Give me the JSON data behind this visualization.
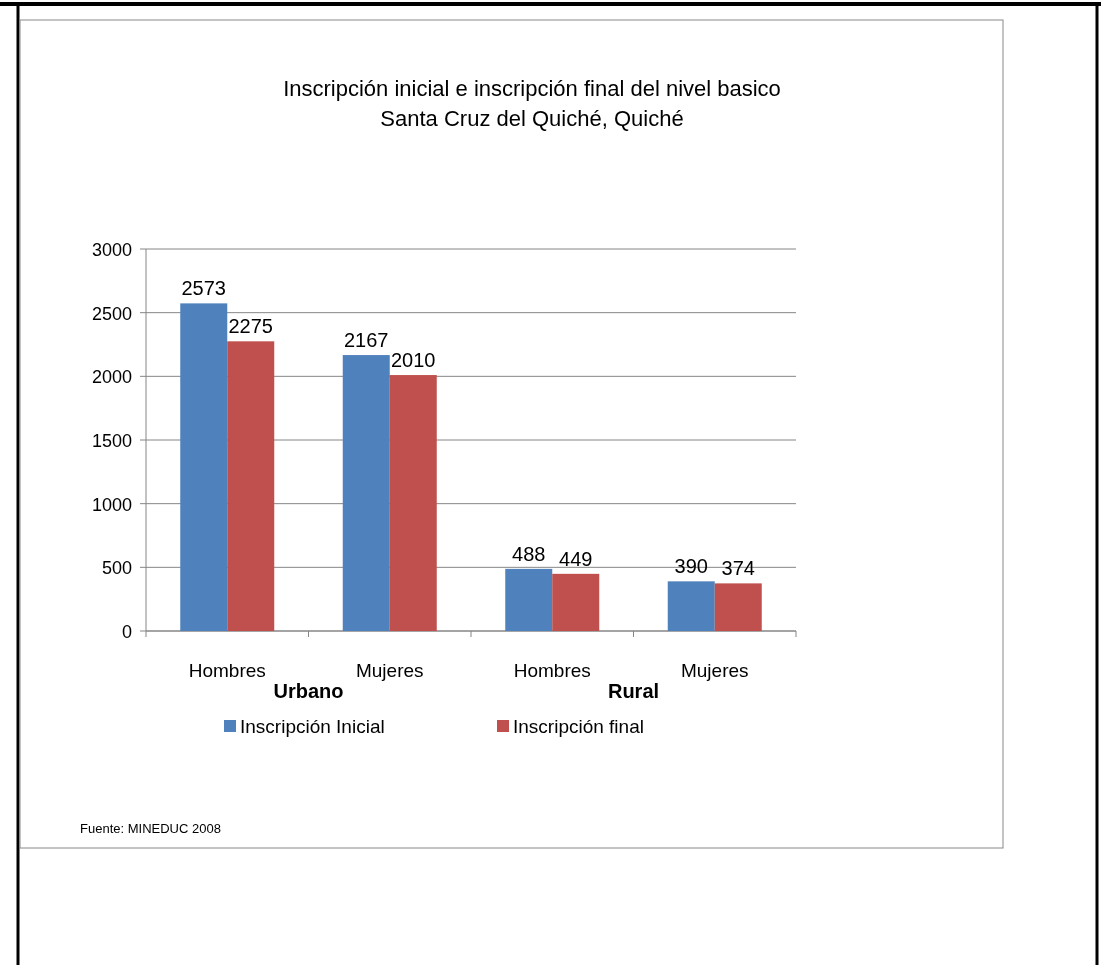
{
  "chart_data": {
    "type": "bar",
    "title": "Inscripción inicial e inscripción final del nivel basico\nSanta Cruz del Quiché, Quiché",
    "categories": [
      "Hombres",
      "Mujeres",
      "Hombres",
      "Mujeres"
    ],
    "series": [
      {
        "name": "Inscripción Inicial",
        "color": "#4f81bd",
        "values": [
          2573,
          2167,
          488,
          390
        ]
      },
      {
        "name": "Inscripción final",
        "color": "#c0504d",
        "values": [
          2275,
          2010,
          449,
          374
        ]
      }
    ],
    "ylim": [
      0,
      3000
    ],
    "yticks": [
      0,
      500,
      1000,
      1500,
      2000,
      2500,
      3000
    ],
    "grid": "y",
    "legend": "bottom",
    "data_labels": true,
    "annotations": [
      "Urbano",
      "Rural",
      "Fuente: MINEDUC 2008"
    ]
  }
}
